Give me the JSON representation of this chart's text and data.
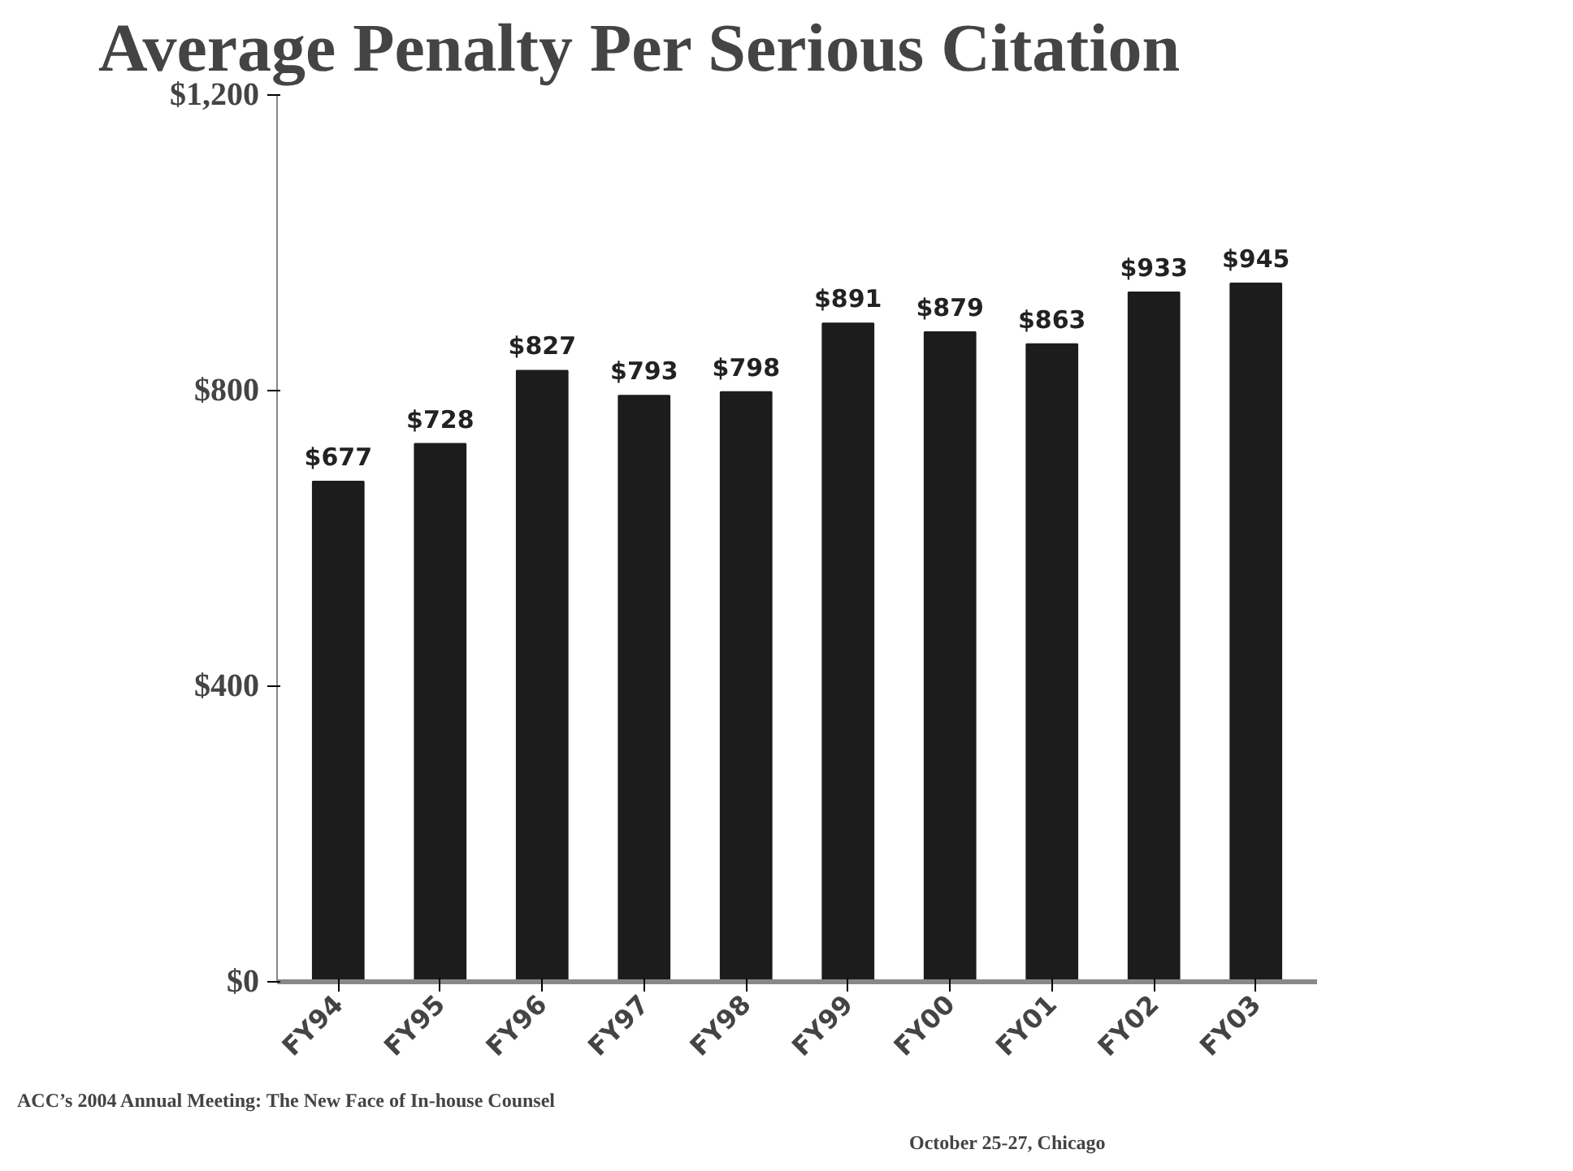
{
  "chart_data": {
    "type": "bar",
    "title": "Average Penalty Per Serious Citation",
    "categories": [
      "FY94",
      "FY95",
      "FY96",
      "FY97",
      "FY98",
      "FY99",
      "FY00",
      "FY01",
      "FY02",
      "FY03"
    ],
    "values": [
      677,
      728,
      827,
      793,
      798,
      891,
      879,
      863,
      933,
      945
    ],
    "value_labels": [
      "$677",
      "$728",
      "$827",
      "$793",
      "$798",
      "$891",
      "$879",
      "$863",
      "$933",
      "$945"
    ],
    "color": "#1c1c1c",
    "ylim": [
      0,
      1200
    ],
    "yticks": [
      {
        "value": 0,
        "label": "$0"
      },
      {
        "value": 400,
        "label": "$400"
      },
      {
        "value": 800,
        "label": "$800"
      },
      {
        "value": 1200,
        "label": "$1,200"
      }
    ],
    "grid": false,
    "annotations": [
      "ACC’s 2004 Annual Meeting: The New Face of In-house Counsel",
      "October 25-27, Chicago"
    ]
  }
}
